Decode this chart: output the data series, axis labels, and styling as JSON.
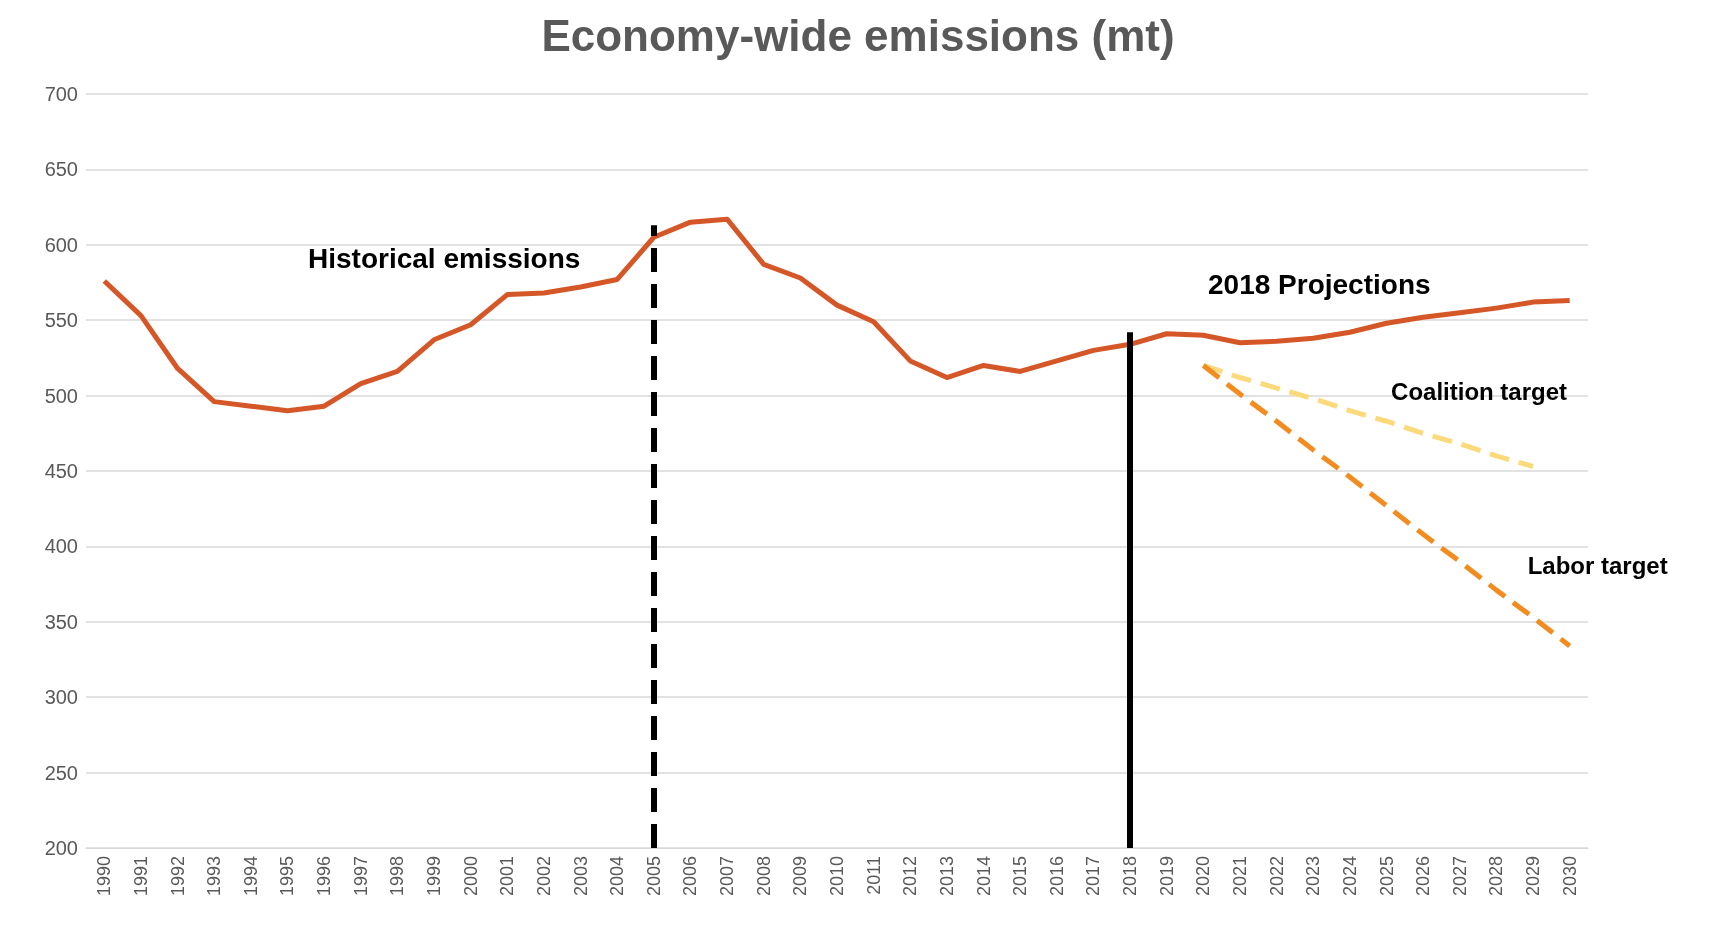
{
  "chart_data": {
    "type": "line",
    "title": "Economy-wide emissions (mt)",
    "categories": [
      "1990",
      "1991",
      "1992",
      "1993",
      "1994",
      "1995",
      "1996",
      "1997",
      "1998",
      "1999",
      "2000",
      "2001",
      "2002",
      "2003",
      "2004",
      "2005",
      "2006",
      "2007",
      "2008",
      "2009",
      "2010",
      "2011",
      "2012",
      "2013",
      "2014",
      "2015",
      "2016",
      "2017",
      "2018",
      "2019",
      "2020",
      "2021",
      "2022",
      "2023",
      "2024",
      "2025",
      "2026",
      "2027",
      "2028",
      "2029",
      "2030"
    ],
    "series": [
      {
        "color": "#d55727",
        "line_style": "solid",
        "values": [
          576,
          553,
          518,
          496,
          493,
          490,
          493,
          508,
          516,
          537,
          547,
          567,
          568,
          572,
          577,
          605,
          615,
          617,
          587,
          578,
          560,
          549,
          523,
          512,
          520,
          516,
          523,
          530,
          534,
          541,
          540,
          535,
          536,
          538,
          542,
          548,
          552,
          555,
          558,
          562,
          563
        ]
      },
      {
        "name": "Coalition target",
        "color": "#fcd97a",
        "line_style": "dashed",
        "values": [
          null,
          null,
          null,
          null,
          null,
          null,
          null,
          null,
          null,
          null,
          null,
          null,
          null,
          null,
          null,
          null,
          null,
          null,
          null,
          null,
          null,
          null,
          null,
          null,
          null,
          null,
          null,
          null,
          null,
          null,
          520,
          512,
          505,
          498,
          490,
          483,
          475,
          468,
          460,
          453,
          null
        ]
      },
      {
        "name": "Labor target",
        "color": "#f28c1e",
        "line_style": "dashed",
        "values": [
          null,
          null,
          null,
          null,
          null,
          null,
          null,
          null,
          null,
          null,
          null,
          null,
          null,
          null,
          null,
          null,
          null,
          null,
          null,
          null,
          null,
          null,
          null,
          null,
          null,
          null,
          null,
          null,
          null,
          null,
          520,
          501,
          483,
          464,
          446,
          427,
          408,
          390,
          371,
          353,
          334
        ]
      }
    ],
    "ylim": [
      200,
      700
    ],
    "yticks": [
      200,
      250,
      300,
      350,
      400,
      450,
      500,
      550,
      600,
      650,
      700
    ],
    "grid": "y",
    "legend": false,
    "marker": "none",
    "ref_lines": [
      {
        "axis": "x",
        "value": "2005",
        "color": "#000000",
        "line_style": "dashed"
      },
      {
        "axis": "x",
        "value": "2018",
        "color": "#000000",
        "line_style": "solid"
      }
    ],
    "annotations": [
      "Historical emissions",
      "2018 Projections"
    ]
  }
}
